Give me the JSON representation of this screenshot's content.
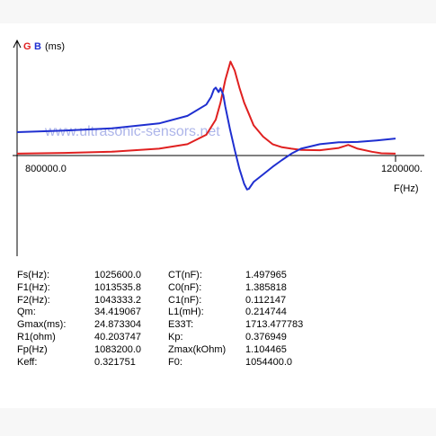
{
  "chart_data": {
    "type": "line",
    "legend": {
      "g_label": "G",
      "b_label": "B",
      "unit_label": "(ms)"
    },
    "xlabel": "F(Hz)",
    "x_tick_labels": [
      "800000.0",
      "1200000."
    ],
    "xlim": [
      800000,
      1200000
    ],
    "watermark": "www.ultrasonic-sensors.net",
    "colors": {
      "G": "#e02020",
      "B": "#1f2fd0"
    },
    "series": [
      {
        "name": "G",
        "color": "#e02020",
        "x": [
          800000,
          850000,
          900000,
          950000,
          980000,
          1000000,
          1010000,
          1015000,
          1020000,
          1025600,
          1030000,
          1035000,
          1040000,
          1045000,
          1050000,
          1060000,
          1070000,
          1080000,
          1090000,
          1100000,
          1120000,
          1140000,
          1150000,
          1160000,
          1175000,
          1185000,
          1200000
        ],
        "y": [
          0.5,
          0.7,
          1.0,
          1.8,
          3.0,
          5.5,
          9.5,
          14.0,
          20.0,
          24.87,
          22.5,
          18.0,
          14.0,
          11.0,
          8.0,
          5.0,
          3.0,
          2.2,
          1.8,
          1.5,
          1.4,
          2.0,
          2.8,
          1.8,
          1.0,
          0.6,
          0.5
        ]
      },
      {
        "name": "B",
        "color": "#1f2fd0",
        "x": [
          800000,
          850000,
          900000,
          950000,
          980000,
          1000000,
          1005000,
          1008000,
          1010000,
          1013000,
          1015000,
          1018000,
          1020000,
          1025000,
          1030000,
          1035000,
          1040000,
          1043000,
          1045000,
          1050000,
          1060000,
          1070000,
          1080000,
          1090000,
          1100000,
          1120000,
          1140000,
          1160000,
          1180000,
          1200000
        ],
        "y": [
          6.2,
          6.6,
          7.2,
          8.5,
          10.5,
          13.5,
          15.5,
          17.5,
          18.0,
          16.8,
          17.8,
          16.0,
          13.0,
          7.0,
          1.5,
          -3.5,
          -7.5,
          -9.0,
          -8.8,
          -7.0,
          -5.0,
          -3.0,
          -1.2,
          0.5,
          1.8,
          3.0,
          3.5,
          3.6,
          4.0,
          4.5
        ]
      }
    ]
  },
  "params": [
    {
      "label": "Fs(Hz):",
      "value": "1025600.0",
      "label2": "CT(nF):",
      "value2": "1.497965"
    },
    {
      "label": "F1(Hz):",
      "value": "1013535.8",
      "label2": "C0(nF):",
      "value2": "1.385818"
    },
    {
      "label": "F2(Hz):",
      "value": "1043333.2",
      "label2": "C1(nF):",
      "value2": "0.112147"
    },
    {
      "label": "Qm:",
      "value": "34.419067",
      "label2": "L1(mH):",
      "value2": "0.214744"
    },
    {
      "label": "Gmax(ms):",
      "value": "24.873304",
      "label2": "E33T:",
      "value2": "1713.477783"
    },
    {
      "label": "R1(ohm)",
      "value": "40.203747",
      "label2": "Kp:",
      "value2": "0.376949"
    },
    {
      "label": "Fp(Hz)",
      "value": "1083200.0",
      "label2": "Zmax(kOhm)",
      "value2": "1.104465"
    },
    {
      "label": "Keff:",
      "value": "0.321751",
      "label2": "F0:",
      "value2": "1054400.0"
    }
  ]
}
